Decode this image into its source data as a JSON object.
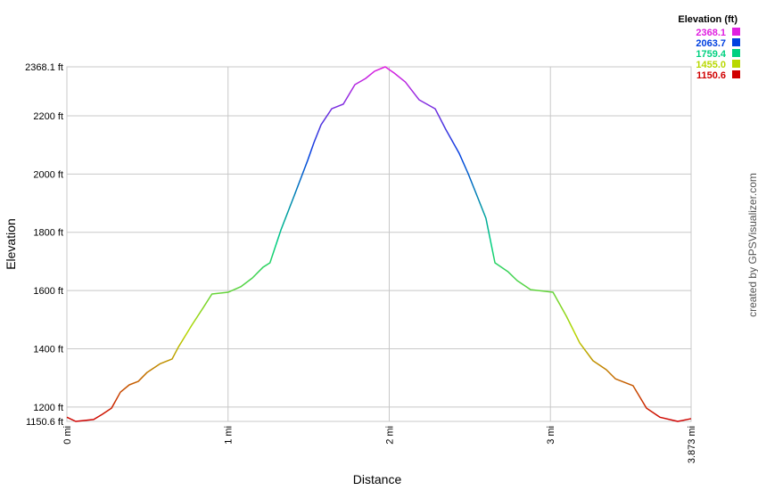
{
  "chart_data": {
    "type": "line",
    "x_label": "Distance",
    "y_label": "Elevation",
    "credit": "created by GPSVisualizer.com",
    "legend_title": "Elevation (ft)",
    "colorscale": [
      {
        "value": 2368.1,
        "color": "#e020e0"
      },
      {
        "value": 2063.7,
        "color": "#0040e0"
      },
      {
        "value": 1759.4,
        "color": "#00d080"
      },
      {
        "value": 1455.0,
        "label": "1455.0",
        "color": "#b8d800"
      },
      {
        "value": 1150.6,
        "color": "#d00000"
      }
    ],
    "x": [
      0,
      0.055,
      0.166,
      0.22,
      0.277,
      0.332,
      0.387,
      0.443,
      0.498,
      0.58,
      0.653,
      0.69,
      0.775,
      0.847,
      0.9,
      1.0,
      1.079,
      1.151,
      1.217,
      1.26,
      1.328,
      1.41,
      1.494,
      1.533,
      1.577,
      1.643,
      1.715,
      1.787,
      1.853,
      1.909,
      1.975,
      2.03,
      2.1,
      2.185,
      2.285,
      2.35,
      2.434,
      2.49,
      2.545,
      2.6,
      2.656,
      2.738,
      2.794,
      2.877,
      3.016,
      3.099,
      3.182,
      3.264,
      3.347,
      3.403,
      3.513,
      3.596,
      3.679,
      3.79,
      3.873
    ],
    "series": [
      {
        "name": "Elevation",
        "values": [
          1165,
          1150.6,
          1157,
          1175,
          1196,
          1251,
          1276,
          1288,
          1319,
          1349,
          1365,
          1404,
          1481,
          1542,
          1588,
          1594,
          1613,
          1643,
          1680,
          1695,
          1808,
          1925,
          2047,
          2108,
          2169,
          2224,
          2240,
          2307,
          2328,
          2353,
          2368.1,
          2347,
          2316,
          2255,
          2224,
          2154,
          2071,
          2001,
          1925,
          1848,
          1695,
          1664,
          1634,
          1603,
          1594,
          1512,
          1420,
          1359,
          1328,
          1297,
          1273,
          1196,
          1165,
          1150.6,
          1160
        ]
      }
    ],
    "xlim": [
      0,
      3.873
    ],
    "ylim": [
      1150.6,
      2368.1
    ],
    "xticks": [
      {
        "value": 0,
        "label": "0 mi"
      },
      {
        "value": 1,
        "label": "1 mi"
      },
      {
        "value": 2,
        "label": "2 mi"
      },
      {
        "value": 3,
        "label": "3 mi"
      },
      {
        "value": 3.873,
        "label": "3.873 mi"
      }
    ],
    "yticks": [
      {
        "value": 1150.6,
        "label": "1150.6 ft"
      },
      {
        "value": 1200,
        "label": "1200 ft"
      },
      {
        "value": 1400,
        "label": "1400 ft"
      },
      {
        "value": 1600,
        "label": "1600 ft"
      },
      {
        "value": 1800,
        "label": "1800 ft"
      },
      {
        "value": 2000,
        "label": "2000 ft"
      },
      {
        "value": 2200,
        "label": "2200 ft"
      },
      {
        "value": 2368.1,
        "label": "2368.1 ft"
      }
    ],
    "grid": true
  }
}
